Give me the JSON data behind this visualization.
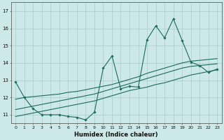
{
  "xlabel": "Humidex (Indice chaleur)",
  "ylabel": "",
  "bg_color": "#cce8e8",
  "grid_color": "#aacccc",
  "line_color": "#1a6b5a",
  "xlim": [
    -0.5,
    23.5
  ],
  "ylim": [
    10.5,
    17.5
  ],
  "xticks": [
    0,
    1,
    2,
    3,
    4,
    5,
    6,
    7,
    8,
    9,
    10,
    11,
    12,
    13,
    14,
    15,
    16,
    17,
    18,
    19,
    20,
    21,
    22,
    23
  ],
  "yticks": [
    11,
    12,
    13,
    14,
    15,
    16,
    17
  ],
  "x": [
    0,
    1,
    2,
    3,
    4,
    5,
    6,
    7,
    8,
    9,
    10,
    11,
    12,
    13,
    14,
    15,
    16,
    17,
    18,
    19,
    20,
    21,
    22,
    23
  ],
  "line1_y": [
    12.9,
    12.0,
    11.35,
    11.0,
    11.0,
    11.0,
    10.9,
    10.85,
    10.7,
    11.15,
    13.7,
    14.4,
    12.5,
    12.65,
    12.6,
    15.35,
    16.15,
    15.45,
    16.55,
    15.3,
    14.05,
    13.85,
    13.45,
    13.65
  ],
  "line2_y": [
    11.9,
    12.0,
    12.05,
    12.1,
    12.15,
    12.2,
    12.3,
    12.35,
    12.45,
    12.55,
    12.65,
    12.75,
    12.9,
    13.05,
    13.2,
    13.4,
    13.55,
    13.7,
    13.85,
    14.0,
    14.1,
    14.15,
    14.2,
    14.25
  ],
  "line3_y": [
    11.3,
    11.4,
    11.5,
    11.6,
    11.7,
    11.8,
    11.9,
    12.0,
    12.1,
    12.2,
    12.35,
    12.5,
    12.65,
    12.8,
    12.95,
    13.1,
    13.25,
    13.4,
    13.55,
    13.7,
    13.8,
    13.85,
    13.9,
    13.95
  ],
  "line4_y": [
    10.9,
    11.0,
    11.1,
    11.2,
    11.3,
    11.4,
    11.5,
    11.6,
    11.7,
    11.8,
    11.95,
    12.1,
    12.25,
    12.4,
    12.5,
    12.6,
    12.75,
    12.85,
    13.0,
    13.15,
    13.3,
    13.4,
    13.5,
    13.6
  ]
}
